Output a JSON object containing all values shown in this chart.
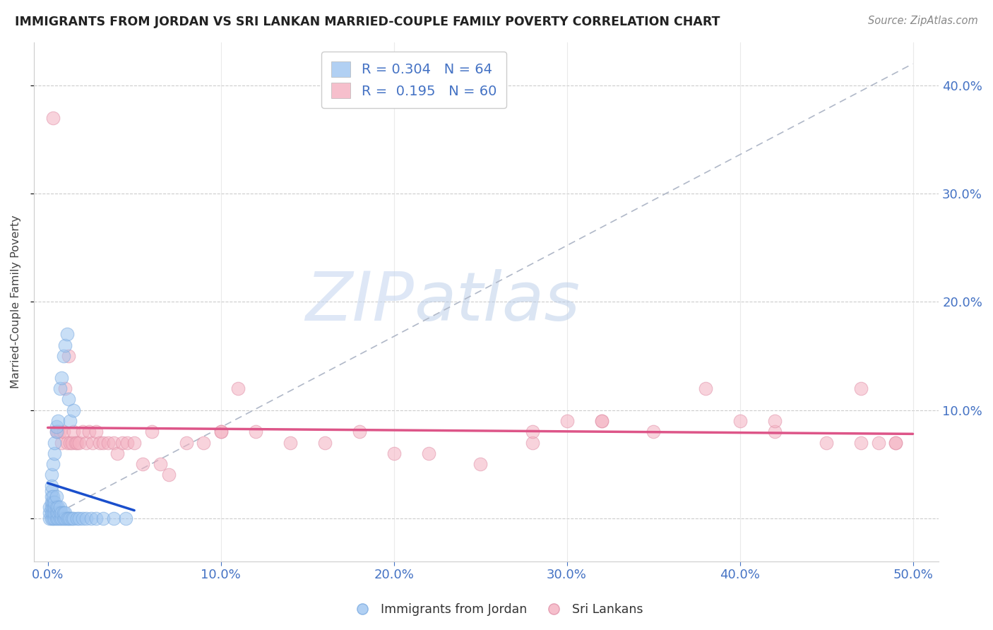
{
  "title": "IMMIGRANTS FROM JORDAN VS SRI LANKAN MARRIED-COUPLE FAMILY POVERTY CORRELATION CHART",
  "source": "Source: ZipAtlas.com",
  "tick_color": "#4472c4",
  "ylabel": "Married-Couple Family Poverty",
  "x_ticklabels": [
    "0.0%",
    "",
    "10.0%",
    "",
    "20.0%",
    "",
    "30.0%",
    "",
    "40.0%",
    "",
    "50.0%"
  ],
  "x_ticks": [
    0.0,
    0.05,
    0.1,
    0.15,
    0.2,
    0.25,
    0.3,
    0.35,
    0.4,
    0.45,
    0.5
  ],
  "x_tick_show": [
    0.0,
    0.1,
    0.2,
    0.3,
    0.4,
    0.5
  ],
  "y_ticklabels_right": [
    "",
    "10.0%",
    "20.0%",
    "30.0%",
    "40.0%"
  ],
  "y_ticks": [
    0.0,
    0.1,
    0.2,
    0.3,
    0.4
  ],
  "xlim": [
    -0.008,
    0.515
  ],
  "ylim": [
    -0.04,
    0.44
  ],
  "jordan_color": "#9ec5f0",
  "jordan_edge_color": "#7aaae0",
  "sri_lanka_color": "#f4b0c0",
  "sri_lanka_edge_color": "#e090a8",
  "jordan_trend_color": "#1a4fcc",
  "sri_trend_color": "#dd5588",
  "ref_line_color": "#b0b8c8",
  "jordan_R": 0.304,
  "jordan_N": 64,
  "sri_lanka_R": 0.195,
  "sri_lanka_N": 60,
  "watermark_zip": "ZIP",
  "watermark_atlas": "atlas",
  "legend_labels": [
    "Immigrants from Jordan",
    "Sri Lankans"
  ],
  "jordan_x": [
    0.001,
    0.001,
    0.001,
    0.002,
    0.002,
    0.002,
    0.002,
    0.002,
    0.002,
    0.002,
    0.002,
    0.003,
    0.003,
    0.003,
    0.003,
    0.003,
    0.003,
    0.004,
    0.004,
    0.004,
    0.004,
    0.004,
    0.004,
    0.005,
    0.005,
    0.005,
    0.005,
    0.005,
    0.005,
    0.006,
    0.006,
    0.006,
    0.006,
    0.007,
    0.007,
    0.007,
    0.007,
    0.008,
    0.008,
    0.008,
    0.009,
    0.009,
    0.009,
    0.01,
    0.01,
    0.01,
    0.011,
    0.011,
    0.012,
    0.012,
    0.013,
    0.013,
    0.014,
    0.015,
    0.015,
    0.017,
    0.018,
    0.02,
    0.022,
    0.025,
    0.028,
    0.032,
    0.038,
    0.045
  ],
  "jordan_y": [
    0.0,
    0.005,
    0.01,
    0.0,
    0.005,
    0.01,
    0.015,
    0.02,
    0.025,
    0.03,
    0.04,
    0.0,
    0.005,
    0.01,
    0.015,
    0.02,
    0.05,
    0.0,
    0.005,
    0.01,
    0.015,
    0.06,
    0.07,
    0.0,
    0.005,
    0.01,
    0.02,
    0.08,
    0.085,
    0.0,
    0.005,
    0.01,
    0.09,
    0.0,
    0.005,
    0.01,
    0.12,
    0.0,
    0.005,
    0.13,
    0.0,
    0.005,
    0.15,
    0.0,
    0.005,
    0.16,
    0.0,
    0.17,
    0.0,
    0.11,
    0.0,
    0.09,
    0.0,
    0.0,
    0.1,
    0.0,
    0.0,
    0.0,
    0.0,
    0.0,
    0.0,
    0.0,
    0.0,
    0.0
  ],
  "sri_x": [
    0.003,
    0.005,
    0.006,
    0.007,
    0.008,
    0.009,
    0.01,
    0.011,
    0.012,
    0.013,
    0.014,
    0.015,
    0.016,
    0.017,
    0.018,
    0.02,
    0.022,
    0.024,
    0.026,
    0.028,
    0.03,
    0.032,
    0.035,
    0.038,
    0.04,
    0.043,
    0.046,
    0.05,
    0.055,
    0.06,
    0.065,
    0.07,
    0.08,
    0.09,
    0.1,
    0.11,
    0.12,
    0.14,
    0.16,
    0.18,
    0.2,
    0.22,
    0.25,
    0.28,
    0.3,
    0.32,
    0.35,
    0.38,
    0.42,
    0.45,
    0.47,
    0.48,
    0.49,
    0.1,
    0.28,
    0.32,
    0.4,
    0.42,
    0.47,
    0.49
  ],
  "sri_y": [
    0.37,
    0.08,
    0.08,
    0.08,
    0.07,
    0.08,
    0.12,
    0.07,
    0.15,
    0.07,
    0.07,
    0.08,
    0.07,
    0.07,
    0.07,
    0.08,
    0.07,
    0.08,
    0.07,
    0.08,
    0.07,
    0.07,
    0.07,
    0.07,
    0.06,
    0.07,
    0.07,
    0.07,
    0.05,
    0.08,
    0.05,
    0.04,
    0.07,
    0.07,
    0.08,
    0.12,
    0.08,
    0.07,
    0.07,
    0.08,
    0.06,
    0.06,
    0.05,
    0.07,
    0.09,
    0.09,
    0.08,
    0.12,
    0.08,
    0.07,
    0.12,
    0.07,
    0.07,
    0.08,
    0.08,
    0.09,
    0.09,
    0.09,
    0.07,
    0.07
  ]
}
